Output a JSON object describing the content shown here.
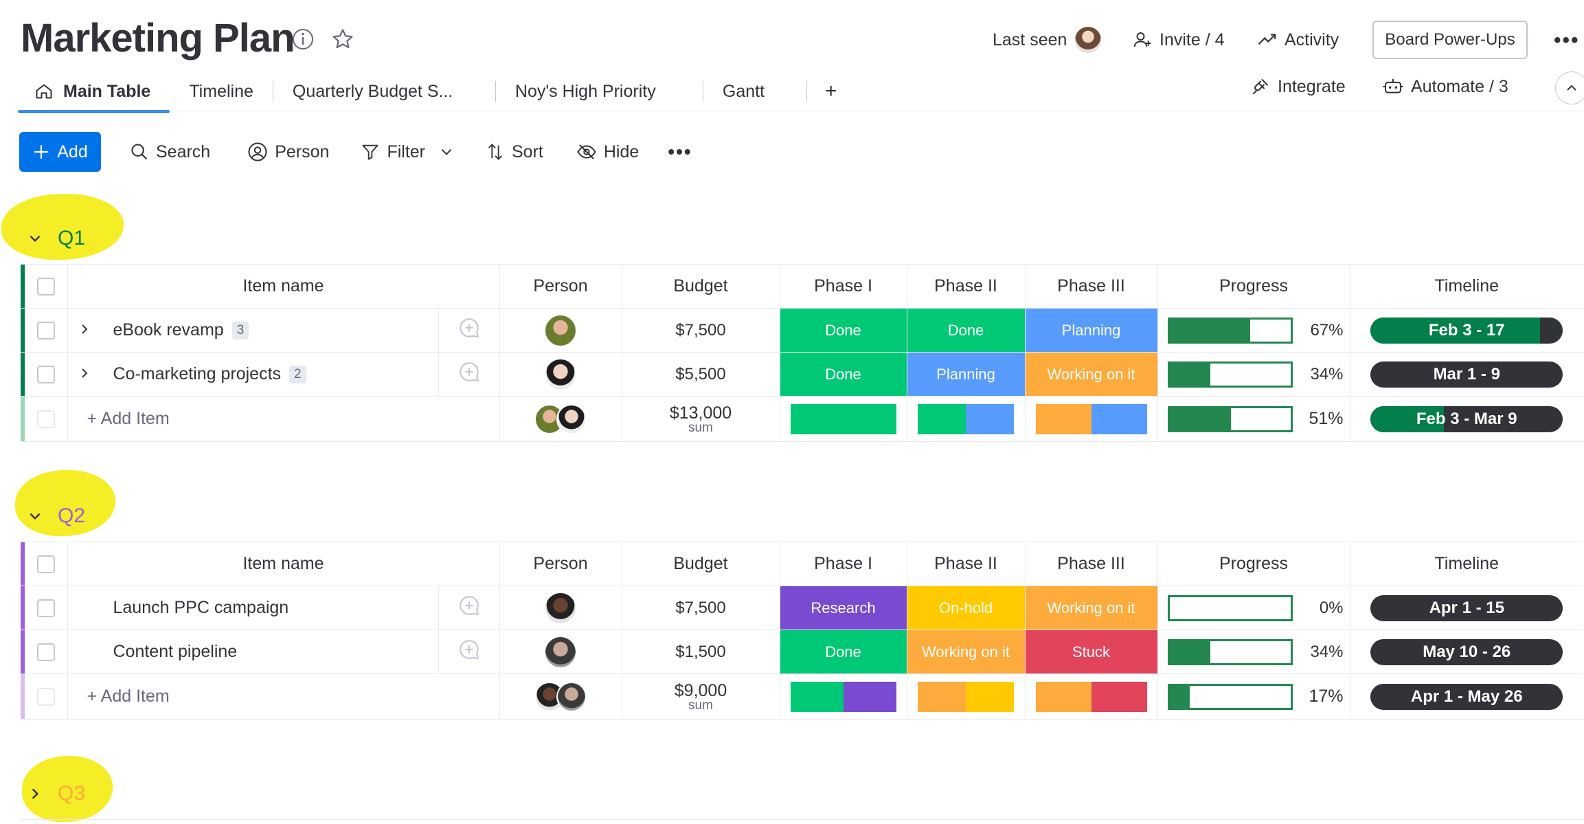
{
  "header": {
    "title": "Marketing Plan",
    "last_seen_label": "Last seen",
    "invite_label": "Invite / 4",
    "activity_label": "Activity",
    "powerups_label": "Board Power-Ups",
    "more_label": "•••"
  },
  "tabs": [
    "Main Table",
    "Timeline",
    "Quarterly Budget S...",
    "Noy's High Priority",
    "Gantt"
  ],
  "tab_add_label": "+",
  "right_actions": {
    "integrate": "Integrate",
    "automate": "Automate / 3"
  },
  "toolbar": {
    "add": "Add",
    "search": "Search",
    "person": "Person",
    "filter": "Filter",
    "sort": "Sort",
    "hide": "Hide",
    "more": "•••"
  },
  "columns": [
    "Item name",
    "Person",
    "Budget",
    "Phase I",
    "Phase II",
    "Phase III",
    "Progress",
    "Timeline"
  ],
  "status_colors": {
    "Done": "#00c875",
    "Planning": "#579bfc",
    "Working on it": "#fdab3d",
    "Research": "#784bd1",
    "On-hold": "#ffcb00",
    "Stuck": "#e2445c"
  },
  "groups": [
    {
      "title": "Q1",
      "color": "#037f4c",
      "items": [
        {
          "name": "eBook revamp",
          "subitems": "3",
          "budget": "$7,500",
          "phase1": "Done",
          "phase2": "Done",
          "phase3": "Planning",
          "progress": 0.67,
          "progress_label": "67%",
          "timeline": "Feb 3 - 17",
          "timeline_elapsed": 0.88
        },
        {
          "name": "Co-marketing projects",
          "subitems": "2",
          "budget": "$5,500",
          "phase1": "Done",
          "phase2": "Planning",
          "phase3": "Working on it",
          "progress": 0.34,
          "progress_label": "34%",
          "timeline": "Mar 1 - 9",
          "timeline_elapsed": 0
        }
      ],
      "add_item_label": "+ Add Item",
      "summary": {
        "budget": "$13,000",
        "budget_label": "sum",
        "progress": 0.51,
        "progress_label": "51%",
        "timeline": "Feb 3 - Mar 9",
        "timeline_elapsed": 0.38,
        "phase1": [
          {
            "status": "Done",
            "share": 1
          }
        ],
        "phase2": [
          {
            "status": "Done",
            "share": 0.5
          },
          {
            "status": "Planning",
            "share": 0.5
          }
        ],
        "phase3": [
          {
            "status": "Working on it",
            "share": 0.5
          },
          {
            "status": "Planning",
            "share": 0.5
          }
        ]
      }
    },
    {
      "title": "Q2",
      "color": "#a25ddc",
      "items": [
        {
          "name": "Launch PPC campaign",
          "subitems": "",
          "budget": "$7,500",
          "phase1": "Research",
          "phase2": "On-hold",
          "phase3": "Working on it",
          "progress": 0,
          "progress_label": "0%",
          "timeline": "Apr 1 - 15",
          "timeline_elapsed": 0
        },
        {
          "name": "Content pipeline",
          "subitems": "",
          "budget": "$1,500",
          "phase1": "Done",
          "phase2": "Working on it",
          "phase3": "Stuck",
          "progress": 0.34,
          "progress_label": "34%",
          "timeline": "May 10 - 26",
          "timeline_elapsed": 0
        }
      ],
      "add_item_label": "+ Add Item",
      "summary": {
        "budget": "$9,000",
        "budget_label": "sum",
        "progress": 0.17,
        "progress_label": "17%",
        "timeline": "Apr 1 - May 26",
        "timeline_elapsed": 0,
        "phase1": [
          {
            "status": "Done",
            "share": 0.5
          },
          {
            "status": "Research",
            "share": 0.5
          }
        ],
        "phase2": [
          {
            "status": "Working on it",
            "share": 0.5
          },
          {
            "status": "On-hold",
            "share": 0.5
          }
        ],
        "phase3": [
          {
            "status": "Working on it",
            "share": 0.5
          },
          {
            "status": "Stuck",
            "share": 0.5
          }
        ]
      }
    },
    {
      "title": "Q3",
      "color": "#fdab3d"
    }
  ]
}
